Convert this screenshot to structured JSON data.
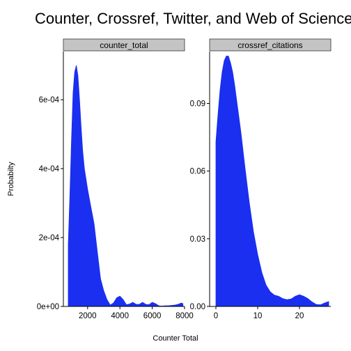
{
  "title": "Counter, Crossref, Twitter, and Web of Science",
  "chart_data": {
    "type": "area",
    "title": "Counter, Crossref, Twitter, and Web of Science",
    "xlabel": "Counter Total",
    "ylabel": "Probabilty",
    "fill_color": "#1a2ff0",
    "strip_color": "#c4c4c4",
    "grid": false,
    "panels": [
      {
        "name": "counter_total",
        "xlim": [
          500,
          8000
        ],
        "ylim": [
          0,
          0.00074
        ],
        "x_ticks": [
          2000,
          4000,
          6000,
          8000
        ],
        "x_tick_labels": [
          "2000",
          "4000",
          "6000",
          "8000"
        ],
        "y_ticks": [
          0,
          0.0002,
          0.0004,
          0.0006
        ],
        "y_tick_labels": [
          "0e+00",
          "2e-04",
          "4e-04",
          "6e-04"
        ],
        "density": {
          "x": [
            800,
            900,
            1000,
            1100,
            1200,
            1300,
            1400,
            1500,
            1600,
            1700,
            1800,
            2000,
            2200,
            2400,
            2600,
            2800,
            3000,
            3200,
            3400,
            3600,
            3800,
            4000,
            4200,
            4400,
            4600,
            4800,
            5000,
            5200,
            5400,
            5600,
            5800,
            6000,
            6200,
            6400,
            6600,
            6800,
            7000,
            7200,
            7400,
            7600,
            7800,
            7900
          ],
          "y": [
            0.00018,
            0.00032,
            0.00048,
            0.00062,
            0.00068,
            0.0007,
            0.00067,
            0.0006,
            0.00052,
            0.00045,
            0.0004,
            0.00034,
            0.00029,
            0.00024,
            0.00016,
            8e-05,
            4.5e-05,
            2e-05,
            4e-06,
            1e-05,
            2.5e-05,
            3e-05,
            2e-05,
            5e-06,
            7e-06,
            1.2e-05,
            6e-06,
            6e-06,
            1.2e-05,
            6e-06,
            5e-06,
            1.2e-05,
            8e-06,
            2e-06,
            1e-06,
            2e-06,
            2e-06,
            3e-06,
            4e-06,
            6e-06,
            1e-05,
            8e-06
          ]
        }
      },
      {
        "name": "crossref_citations",
        "xlim": [
          -1.5,
          27.5
        ],
        "ylim": [
          0,
          0.113
        ],
        "x_ticks": [
          0,
          10,
          20
        ],
        "x_tick_labels": [
          "0",
          "10",
          "20"
        ],
        "y_ticks": [
          0,
          0.03,
          0.06,
          0.09
        ],
        "y_tick_labels": [
          "0.00",
          "0.03",
          "0.06",
          "0.09"
        ],
        "density": {
          "x": [
            0,
            0.5,
            1,
            1.5,
            2,
            2.5,
            3,
            3.5,
            4,
            4.5,
            5,
            6,
            7,
            8,
            9,
            10,
            11,
            12,
            13,
            14,
            15,
            16,
            17,
            18,
            19,
            20,
            21,
            22,
            23,
            24,
            25,
            26,
            27
          ],
          "y": [
            0.073,
            0.085,
            0.096,
            0.104,
            0.109,
            0.111,
            0.111,
            0.108,
            0.104,
            0.098,
            0.091,
            0.077,
            0.061,
            0.046,
            0.033,
            0.023,
            0.015,
            0.0095,
            0.0065,
            0.005,
            0.0045,
            0.0035,
            0.003,
            0.0033,
            0.0045,
            0.0052,
            0.0045,
            0.0035,
            0.002,
            0.0009,
            0.0007,
            0.0015,
            0.0022
          ]
        }
      }
    ]
  }
}
